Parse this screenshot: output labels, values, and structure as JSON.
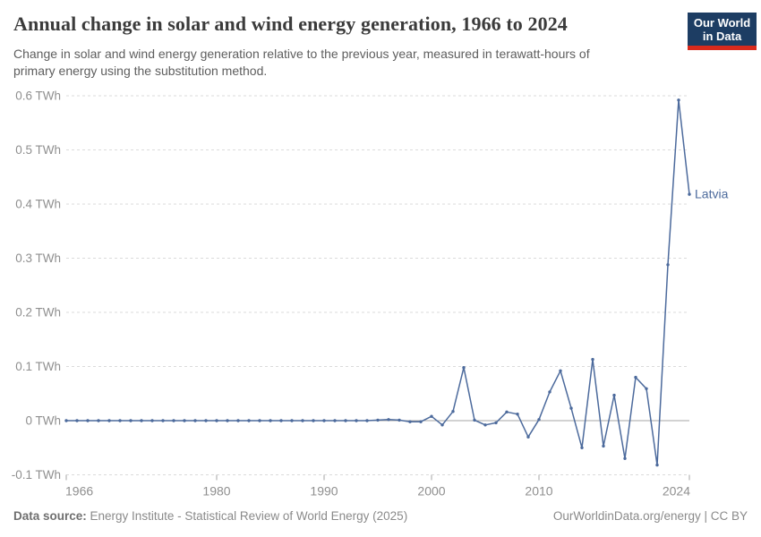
{
  "header": {
    "title": "Annual change in solar and wind energy generation, 1966 to 2024",
    "subtitle_line1": "Change in solar and wind energy generation relative to the previous year, measured in terawatt-hours of",
    "subtitle_line2": "primary energy using the substitution method."
  },
  "logo": {
    "line1": "Our World",
    "line2": "in Data",
    "bg_color": "#1d3d63",
    "accent_color": "#d92a1c"
  },
  "chart_data": {
    "type": "line",
    "title": "Annual change in solar and wind energy generation, 1966 to 2024",
    "unit": "TWh",
    "xlim": [
      1966,
      2024
    ],
    "ylim": [
      -0.1,
      0.6
    ],
    "grid": "dashed-horizontal",
    "x_ticks": [
      {
        "value": 1966,
        "label": "1966"
      },
      {
        "value": 1980,
        "label": "1980"
      },
      {
        "value": 1990,
        "label": "1990"
      },
      {
        "value": 2000,
        "label": "2000"
      },
      {
        "value": 2010,
        "label": "2010"
      },
      {
        "value": 2024,
        "label": "2024"
      }
    ],
    "y_ticks": [
      {
        "value": -0.1,
        "label": "-0.1 TWh"
      },
      {
        "value": 0,
        "label": "0 TWh"
      },
      {
        "value": 0.1,
        "label": "0.1 TWh"
      },
      {
        "value": 0.2,
        "label": "0.2 TWh"
      },
      {
        "value": 0.3,
        "label": "0.3 TWh"
      },
      {
        "value": 0.4,
        "label": "0.4 TWh"
      },
      {
        "value": 0.5,
        "label": "0.5 TWh"
      },
      {
        "value": 0.6,
        "label": "0.6 TWh"
      }
    ],
    "series": [
      {
        "name": "Latvia",
        "color": "#4c6a9c",
        "x": [
          1966,
          1967,
          1968,
          1969,
          1970,
          1971,
          1972,
          1973,
          1974,
          1975,
          1976,
          1977,
          1978,
          1979,
          1980,
          1981,
          1982,
          1983,
          1984,
          1985,
          1986,
          1987,
          1988,
          1989,
          1990,
          1991,
          1992,
          1993,
          1994,
          1995,
          1996,
          1997,
          1998,
          1999,
          2000,
          2001,
          2002,
          2003,
          2004,
          2005,
          2006,
          2007,
          2008,
          2009,
          2010,
          2011,
          2012,
          2013,
          2014,
          2015,
          2016,
          2017,
          2018,
          2019,
          2020,
          2021,
          2022,
          2023,
          2024
        ],
        "values": [
          0,
          0,
          0,
          0,
          0,
          0,
          0,
          0,
          0,
          0,
          0,
          0,
          0,
          0,
          0,
          0,
          0,
          0,
          0,
          0,
          0,
          0,
          0,
          0,
          0,
          0,
          0,
          0,
          0,
          0.001,
          0.002,
          0.001,
          -0.002,
          -0.002,
          0.008,
          -0.008,
          0.017,
          0.098,
          0.001,
          -0.008,
          -0.004,
          0.016,
          0.012,
          -0.03,
          0.002,
          0.053,
          0.092,
          0.023,
          -0.05,
          0.113,
          -0.047,
          0.047,
          -0.07,
          0.08,
          0.059,
          -0.082,
          0.288,
          0.592,
          0.418
        ]
      }
    ],
    "colors": {
      "gridline": "#dbdbdb",
      "zero_line": "#a6a6a6",
      "tick_mark": "#a6a6a6",
      "tick_label": "#8f8f8f"
    }
  },
  "footer": {
    "source_label": "Data source:",
    "source_text": " Energy Institute - Statistical Review of World Energy (2025)",
    "credit": "OurWorldinData.org/energy | CC BY"
  }
}
